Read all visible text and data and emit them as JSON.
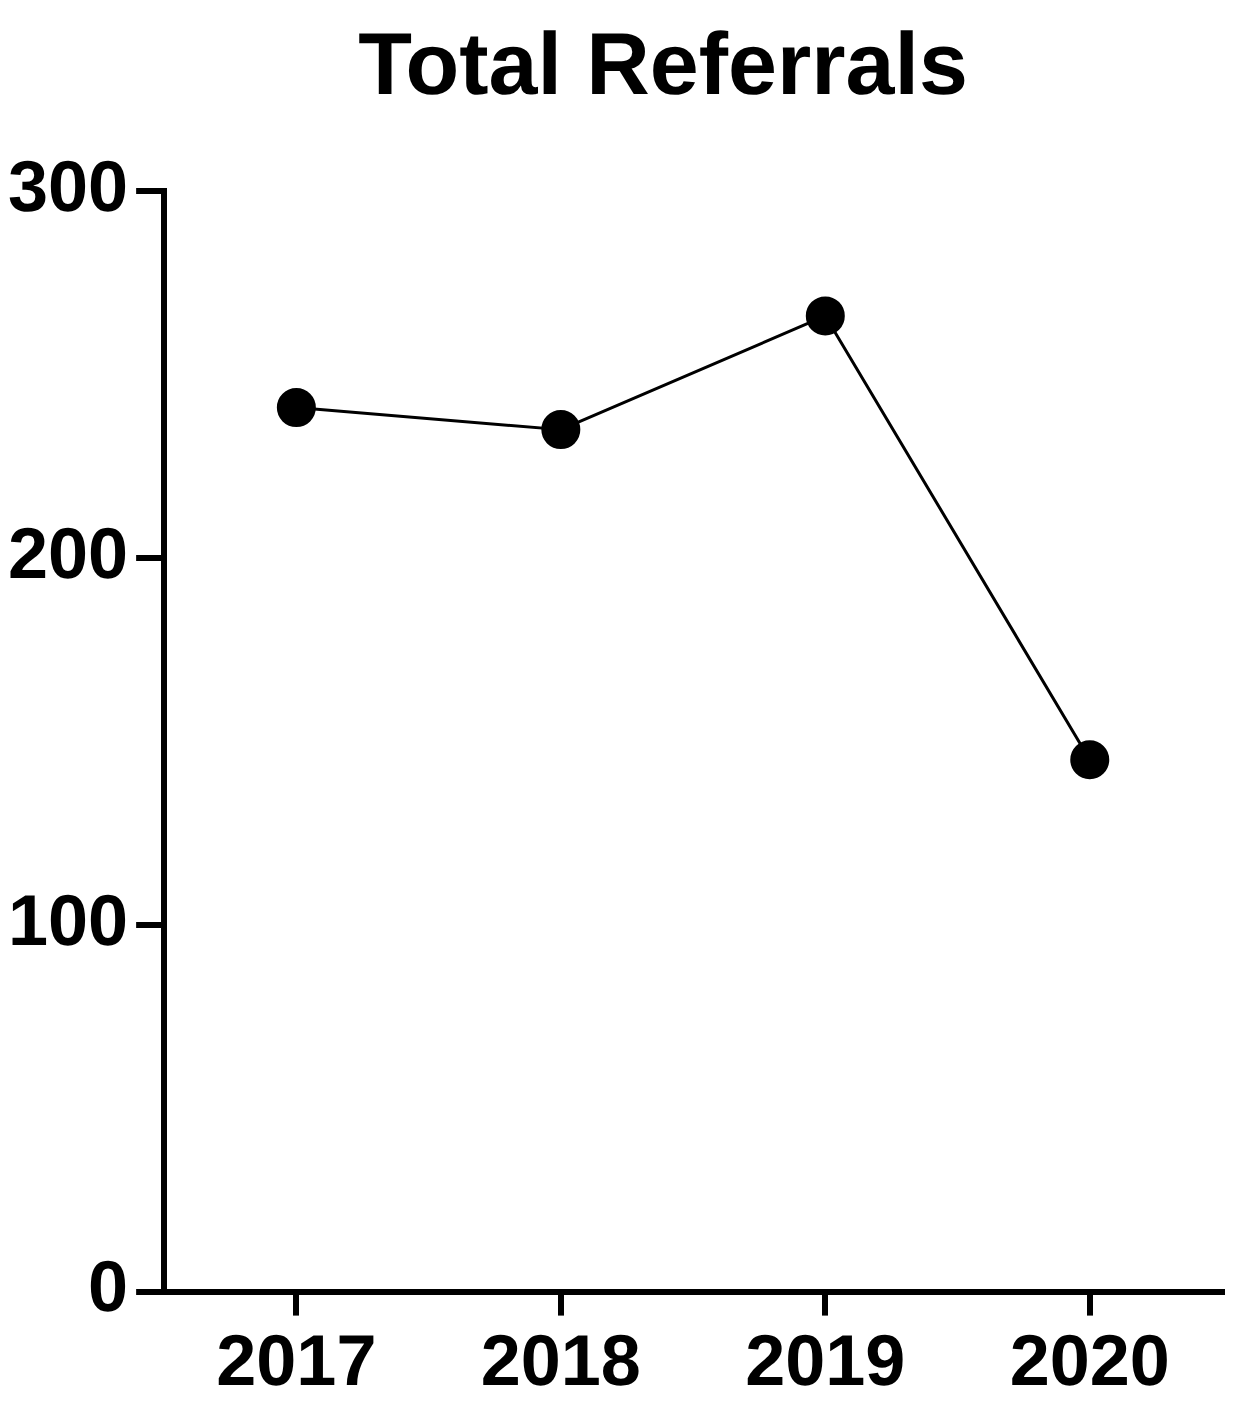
{
  "chart_data": {
    "type": "line",
    "title": "Total Referrals",
    "categories": [
      "2017",
      "2018",
      "2019",
      "2020"
    ],
    "series": [
      {
        "color": "#000000",
        "values": [
          241,
          235,
          266,
          145
        ]
      }
    ],
    "ylim": [
      0,
      300
    ],
    "yticks": [
      0,
      100,
      200,
      300
    ],
    "grid": false,
    "legend": false,
    "marker": "circle",
    "line_style": "solid"
  }
}
